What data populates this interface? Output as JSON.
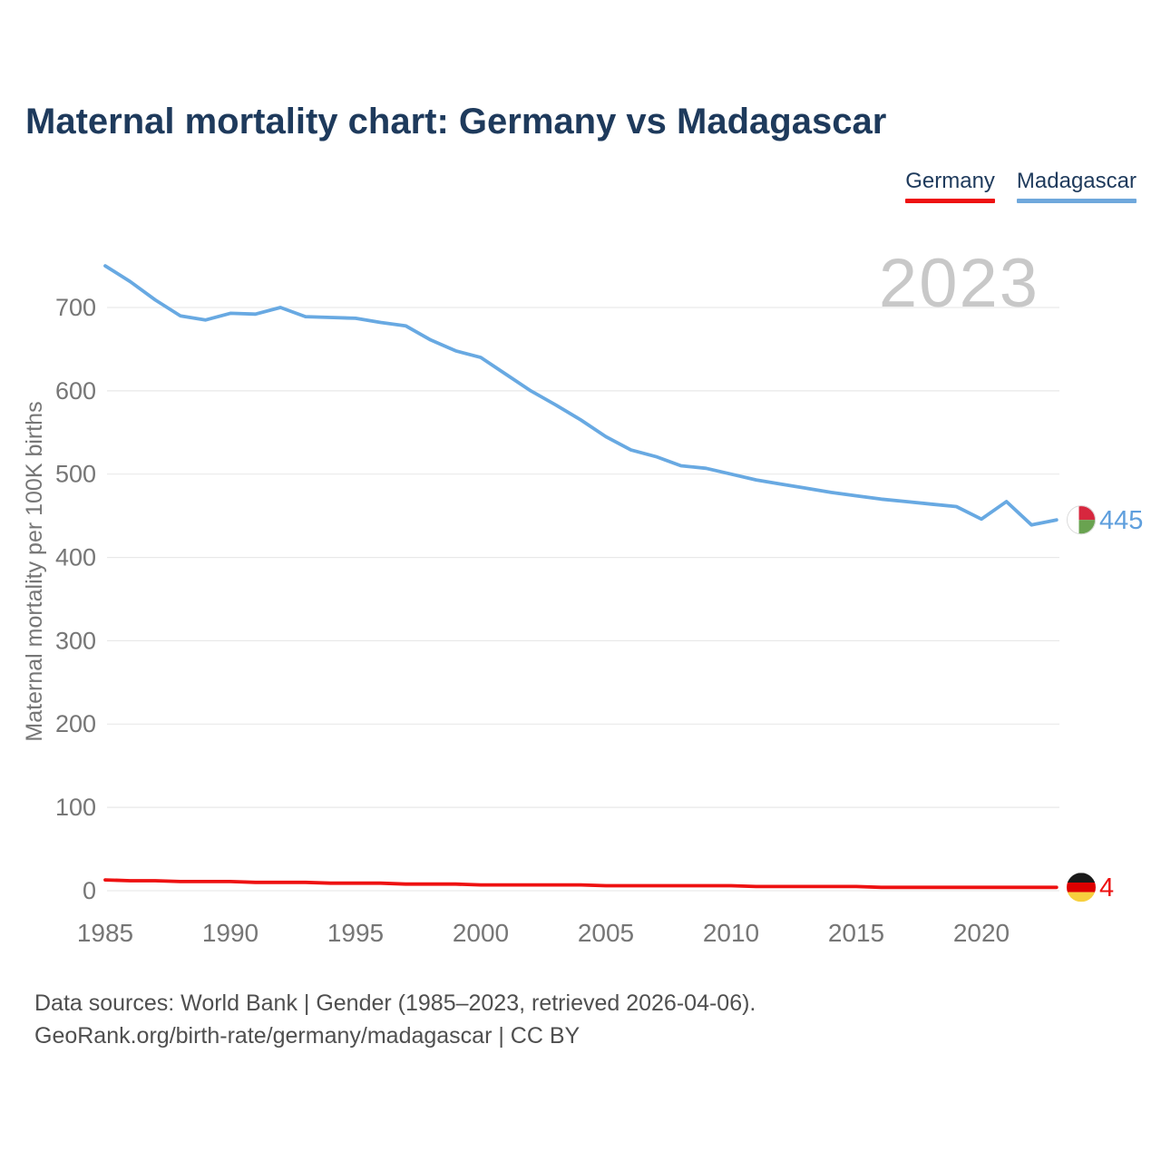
{
  "page": {
    "title": "Maternal mortality chart: Germany vs Madagascar"
  },
  "legend": {
    "items": [
      {
        "label": "Germany",
        "color": "#ee1111"
      },
      {
        "label": "Madagascar",
        "color": "#6fa8dc"
      }
    ]
  },
  "footer": {
    "line1": "Data sources: World Bank | Gender (1985–2023, retrieved 2026-04-06).",
    "line2": "GeoRank.org/birth-rate/germany/madagascar | CC BY"
  },
  "chart_data": {
    "type": "line",
    "title": "Maternal mortality chart: Germany vs Madagascar",
    "xlabel": "",
    "ylabel": "Maternal mortality per 100K births",
    "annotation": "2023",
    "grid": "horizontal",
    "legend_position": "top-right",
    "xlim": [
      1985,
      2023
    ],
    "ylim": [
      0,
      760
    ],
    "x_ticks": [
      1985,
      1990,
      1995,
      2000,
      2005,
      2010,
      2015,
      2020
    ],
    "y_ticks": [
      0,
      100,
      200,
      300,
      400,
      500,
      600,
      700
    ],
    "x": [
      1985,
      1986,
      1987,
      1988,
      1989,
      1990,
      1991,
      1992,
      1993,
      1994,
      1995,
      1996,
      1997,
      1998,
      1999,
      2000,
      2001,
      2002,
      2003,
      2004,
      2005,
      2006,
      2007,
      2008,
      2009,
      2010,
      2011,
      2012,
      2013,
      2014,
      2015,
      2016,
      2017,
      2018,
      2019,
      2020,
      2021,
      2022,
      2023
    ],
    "series": [
      {
        "name": "Madagascar",
        "color": "#68a9e2",
        "label_color": "#5f9fdd",
        "end_label": "445",
        "flag_layout": "madagascar",
        "flag_colors": [
          "#ffffff",
          "#d7273e",
          "#69a350"
        ],
        "values": [
          750,
          731,
          709,
          690,
          685,
          693,
          692,
          700,
          689,
          688,
          687,
          682,
          678,
          661,
          648,
          640,
          620,
          600,
          583,
          565,
          545,
          529,
          521,
          510,
          507,
          500,
          493,
          488,
          483,
          478,
          474,
          470,
          467,
          464,
          461,
          446,
          467,
          439,
          445
        ]
      },
      {
        "name": "Germany",
        "color": "#ee1111",
        "label_color": "#ee1111",
        "end_label": "4",
        "flag_layout": "germany",
        "flag_colors": [
          "#1a1a1a",
          "#dd0000",
          "#f7cf3e"
        ],
        "values": [
          13,
          12,
          12,
          11,
          11,
          11,
          10,
          10,
          10,
          9,
          9,
          9,
          8,
          8,
          8,
          7,
          7,
          7,
          7,
          7,
          6,
          6,
          6,
          6,
          6,
          6,
          5,
          5,
          5,
          5,
          5,
          4,
          4,
          4,
          4,
          4,
          4,
          4,
          4
        ]
      }
    ]
  }
}
